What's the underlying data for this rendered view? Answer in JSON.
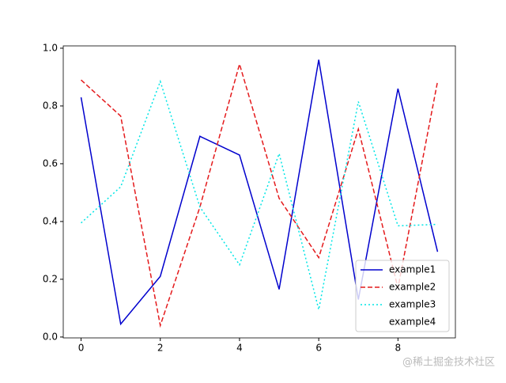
{
  "chart_data": {
    "type": "line",
    "x": [
      0,
      1,
      2,
      3,
      4,
      5,
      6,
      7,
      8,
      9
    ],
    "series": [
      {
        "name": "example1",
        "color": "#0000cd",
        "dash": "solid",
        "values": [
          0.83,
          0.045,
          0.21,
          0.695,
          0.63,
          0.165,
          0.96,
          0.13,
          0.86,
          0.295
        ]
      },
      {
        "name": "example2",
        "color": "#e41a1c",
        "dash": "dashed",
        "values": [
          0.89,
          0.765,
          0.04,
          0.45,
          0.945,
          0.48,
          0.275,
          0.72,
          0.17,
          0.885
        ]
      },
      {
        "name": "example3",
        "color": "#00e5e5",
        "dash": "dotted",
        "values": [
          0.395,
          0.52,
          0.885,
          0.45,
          0.25,
          0.635,
          0.095,
          0.815,
          0.385,
          0.39
        ]
      },
      {
        "name": "example4",
        "color": "#ffffff",
        "dash": "none",
        "values": [
          null,
          null,
          null,
          null,
          null,
          null,
          null,
          null,
          null,
          null
        ]
      }
    ],
    "xlim": [
      -0.45,
      9.45
    ],
    "xticks": [
      0,
      2,
      4,
      6,
      8
    ],
    "ylim": [
      -0.003,
      1.008
    ],
    "yticks": [
      {
        "value": 0,
        "label": "0.0"
      },
      {
        "value": 0.2,
        "label": "0.2"
      },
      {
        "value": 0.4,
        "label": "0.4"
      },
      {
        "value": 0.6,
        "label": "0.6"
      },
      {
        "value": 0.8,
        "label": "0.8"
      },
      {
        "value": 1.0,
        "label": "1.0"
      }
    ],
    "legend": "lower right",
    "watermark": "@稀土掘金技术社区"
  }
}
